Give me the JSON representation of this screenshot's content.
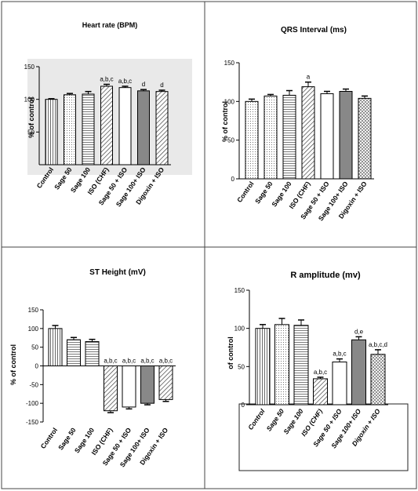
{
  "chart_data": [
    {
      "type": "bar",
      "title": "Heart rate (BPM)",
      "ylabel": "% of control",
      "ylim": [
        0,
        150
      ],
      "yticks": [
        50,
        100,
        150
      ],
      "categories": [
        "Control",
        "Sage 50",
        "Sage 100",
        "ISO (CHF)",
        "Sage 50 + ISO",
        "Sage 100+ ISO",
        "Digoxin + ISO"
      ],
      "values": [
        100,
        107,
        108,
        120,
        118,
        113,
        112
      ],
      "errors": [
        1,
        2,
        4,
        3,
        2,
        2,
        2
      ],
      "annotations": [
        "",
        "",
        "",
        "a,b,c",
        "a,b,c",
        "d",
        "d"
      ]
    },
    {
      "type": "bar",
      "title": "QRS Interval (ms)",
      "ylabel": "% of control",
      "ylim": [
        0,
        150
      ],
      "yticks": [
        0,
        50,
        100,
        150
      ],
      "categories": [
        "Control",
        "Sage 50",
        "Sage 100",
        "ISO (CHF)",
        "Sage 50 + ISO",
        "Sage 100+ ISO",
        "Digoxin + ISO"
      ],
      "values": [
        100,
        107,
        108,
        119,
        110,
        113,
        104
      ],
      "errors": [
        3,
        2,
        6,
        6,
        3,
        3,
        3
      ],
      "annotations": [
        "",
        "",
        "",
        "a",
        "",
        "",
        ""
      ]
    },
    {
      "type": "bar",
      "title": "ST Height (mV)",
      "ylabel": "% of control",
      "ylim": [
        -150,
        150
      ],
      "yticks": [
        -150,
        -100,
        -50,
        0,
        50,
        100,
        150
      ],
      "categories": [
        "Control",
        "Sage 50",
        "Sage 100",
        "ISO (CHF)",
        "Sage 50 + ISO",
        "Sage 100+ ISO",
        "Digoxin + ISO"
      ],
      "values": [
        100,
        70,
        65,
        -120,
        -110,
        -100,
        -90
      ],
      "errors": [
        8,
        6,
        6,
        5,
        5,
        4,
        5
      ],
      "annotations": [
        "",
        "",
        "",
        "a,b,c",
        "a,b,c",
        "a,b,c",
        "a,b,c"
      ]
    },
    {
      "type": "bar",
      "title": "R amplitude (mv)",
      "ylabel": "of control",
      "ylim": [
        0,
        150
      ],
      "yticks": [
        0,
        50,
        100,
        150
      ],
      "categories": [
        "Control",
        "Sage 50",
        "Sage 100",
        "ISO (CHF)",
        "Sage 50 + ISO",
        "Sage 100+ ISO",
        "Digoxin + ISO"
      ],
      "values": [
        100,
        105,
        104,
        34,
        56,
        85,
        66
      ],
      "errors": [
        5,
        8,
        7,
        2,
        4,
        4,
        6
      ],
      "annotations": [
        "",
        "",
        "",
        "a,b,c",
        "a,b,c",
        "d,e",
        "a,b,c,d"
      ]
    }
  ]
}
